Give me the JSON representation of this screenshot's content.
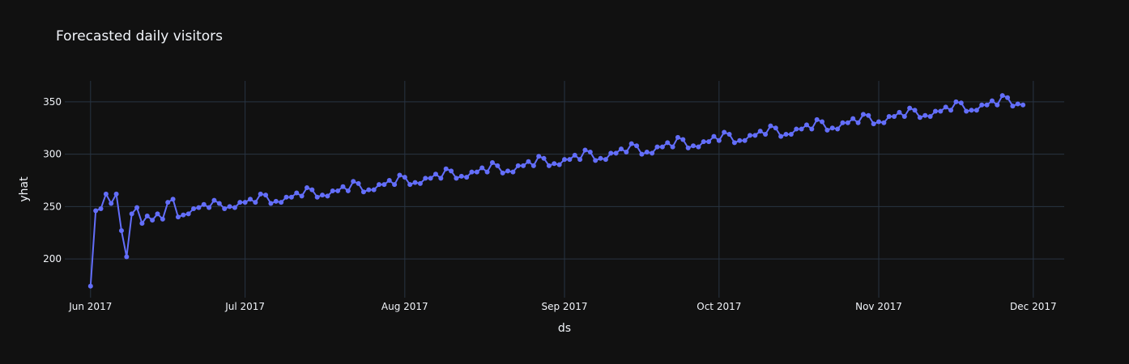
{
  "chart_data": {
    "type": "line",
    "title": "Forecasted daily visitors",
    "xlabel": "ds",
    "ylabel": "yhat",
    "xlim": [
      "2017-05-27",
      "2017-12-07"
    ],
    "ylim": [
      163,
      370
    ],
    "x_ticks": [
      {
        "date": "2017-06-01",
        "label": "Jun 2017"
      },
      {
        "date": "2017-07-01",
        "label": "Jul 2017"
      },
      {
        "date": "2017-08-01",
        "label": "Aug 2017"
      },
      {
        "date": "2017-09-01",
        "label": "Sep 2017"
      },
      {
        "date": "2017-10-01",
        "label": "Oct 2017"
      },
      {
        "date": "2017-11-01",
        "label": "Nov 2017"
      },
      {
        "date": "2017-12-01",
        "label": "Dec 2017"
      }
    ],
    "y_ticks": [
      200,
      250,
      300,
      350
    ],
    "grid": true,
    "legend": "none",
    "series": [
      {
        "color": "#636efa",
        "mode": "lines+markers",
        "start_date": "2017-06-01",
        "x": [
          "2017-06-01",
          "2017-06-02",
          "2017-06-03",
          "2017-06-04",
          "2017-06-05",
          "2017-06-06",
          "2017-06-07",
          "2017-06-08",
          "2017-06-09",
          "2017-06-10",
          "2017-06-11",
          "2017-06-12",
          "2017-06-13",
          "2017-06-14",
          "2017-06-15",
          "2017-06-16",
          "2017-06-17",
          "2017-06-18",
          "2017-06-19",
          "2017-06-20",
          "2017-06-21",
          "2017-06-22",
          "2017-06-23",
          "2017-06-24",
          "2017-06-25",
          "2017-06-26",
          "2017-06-27",
          "2017-06-28",
          "2017-06-29",
          "2017-06-30",
          "2017-07-01",
          "2017-07-02",
          "2017-07-03",
          "2017-07-04",
          "2017-07-05",
          "2017-07-06",
          "2017-07-07",
          "2017-07-08",
          "2017-07-09",
          "2017-07-10",
          "2017-07-11",
          "2017-07-12",
          "2017-07-13",
          "2017-07-14",
          "2017-07-15",
          "2017-07-16",
          "2017-07-17",
          "2017-07-18",
          "2017-07-19",
          "2017-07-20",
          "2017-07-21",
          "2017-07-22",
          "2017-07-23",
          "2017-07-24",
          "2017-07-25",
          "2017-07-26",
          "2017-07-27",
          "2017-07-28",
          "2017-07-29",
          "2017-07-30",
          "2017-07-31",
          "2017-08-01",
          "2017-08-02",
          "2017-08-03",
          "2017-08-04",
          "2017-08-05",
          "2017-08-06",
          "2017-08-07",
          "2017-08-08",
          "2017-08-09",
          "2017-08-10",
          "2017-08-11",
          "2017-08-12",
          "2017-08-13",
          "2017-08-14",
          "2017-08-15",
          "2017-08-16",
          "2017-08-17",
          "2017-08-18",
          "2017-08-19",
          "2017-08-20",
          "2017-08-21",
          "2017-08-22",
          "2017-08-23",
          "2017-08-24",
          "2017-08-25",
          "2017-08-26",
          "2017-08-27",
          "2017-08-28",
          "2017-08-29",
          "2017-08-30",
          "2017-08-31",
          "2017-09-01",
          "2017-09-02",
          "2017-09-03",
          "2017-09-04",
          "2017-09-05",
          "2017-09-06",
          "2017-09-07",
          "2017-09-08",
          "2017-09-09",
          "2017-09-10",
          "2017-09-11",
          "2017-09-12",
          "2017-09-13",
          "2017-09-14",
          "2017-09-15",
          "2017-09-16",
          "2017-09-17",
          "2017-09-18",
          "2017-09-19",
          "2017-09-20",
          "2017-09-21",
          "2017-09-22",
          "2017-09-23",
          "2017-09-24",
          "2017-09-25",
          "2017-09-26",
          "2017-09-27",
          "2017-09-28",
          "2017-09-29",
          "2017-09-30",
          "2017-10-01",
          "2017-10-02",
          "2017-10-03",
          "2017-10-04",
          "2017-10-05",
          "2017-10-06",
          "2017-10-07",
          "2017-10-08",
          "2017-10-09",
          "2017-10-10",
          "2017-10-11",
          "2017-10-12",
          "2017-10-13",
          "2017-10-14",
          "2017-10-15",
          "2017-10-16",
          "2017-10-17",
          "2017-10-18",
          "2017-10-19",
          "2017-10-20",
          "2017-10-21",
          "2017-10-22",
          "2017-10-23",
          "2017-10-24",
          "2017-10-25",
          "2017-10-26",
          "2017-10-27",
          "2017-10-28",
          "2017-10-29",
          "2017-10-30",
          "2017-10-31",
          "2017-11-01",
          "2017-11-02",
          "2017-11-03",
          "2017-11-04",
          "2017-11-05",
          "2017-11-06",
          "2017-11-07",
          "2017-11-08",
          "2017-11-09",
          "2017-11-10",
          "2017-11-11",
          "2017-11-12",
          "2017-11-13",
          "2017-11-14",
          "2017-11-15",
          "2017-11-16",
          "2017-11-17",
          "2017-11-18",
          "2017-11-19",
          "2017-11-20",
          "2017-11-21",
          "2017-11-22",
          "2017-11-23",
          "2017-11-24",
          "2017-11-25",
          "2017-11-26",
          "2017-11-27",
          "2017-11-28",
          "2017-11-29"
        ],
        "values": [
          174,
          246,
          248,
          262,
          253,
          262,
          227,
          202,
          243,
          249,
          234,
          241,
          237,
          243,
          238,
          254,
          257,
          240,
          242,
          243,
          248,
          249,
          252,
          249,
          256,
          253,
          248,
          250,
          249,
          254,
          254,
          257,
          254,
          262,
          261,
          253,
          255,
          254,
          259,
          259,
          263,
          260,
          268,
          266,
          259,
          261,
          260,
          265,
          265,
          269,
          265,
          274,
          272,
          264,
          266,
          266,
          271,
          271,
          275,
          271,
          280,
          278,
          271,
          273,
          272,
          277,
          277,
          281,
          277,
          286,
          284,
          277,
          279,
          278,
          283,
          283,
          287,
          283,
          292,
          289,
          282,
          284,
          283,
          289,
          289,
          293,
          289,
          298,
          296,
          289,
          291,
          290,
          295,
          295,
          299,
          295,
          304,
          302,
          294,
          296,
          295,
          301,
          301,
          305,
          302,
          310,
          308,
          300,
          302,
          301,
          307,
          307,
          311,
          307,
          316,
          314,
          306,
          308,
          307,
          312,
          312,
          317,
          313,
          321,
          319,
          311,
          313,
          313,
          318,
          318,
          322,
          319,
          327,
          325,
          317,
          319,
          319,
          324,
          324,
          328,
          324,
          333,
          331,
          323,
          325,
          324,
          330,
          330,
          334,
          330,
          338,
          337,
          329,
          331,
          330,
          336,
          336,
          340,
          336,
          344,
          342,
          335,
          337,
          336,
          341,
          341,
          345,
          342,
          350,
          349,
          341,
          342,
          342,
          347,
          347,
          351,
          347,
          356,
          354,
          346,
          348,
          347
        ]
      }
    ]
  }
}
